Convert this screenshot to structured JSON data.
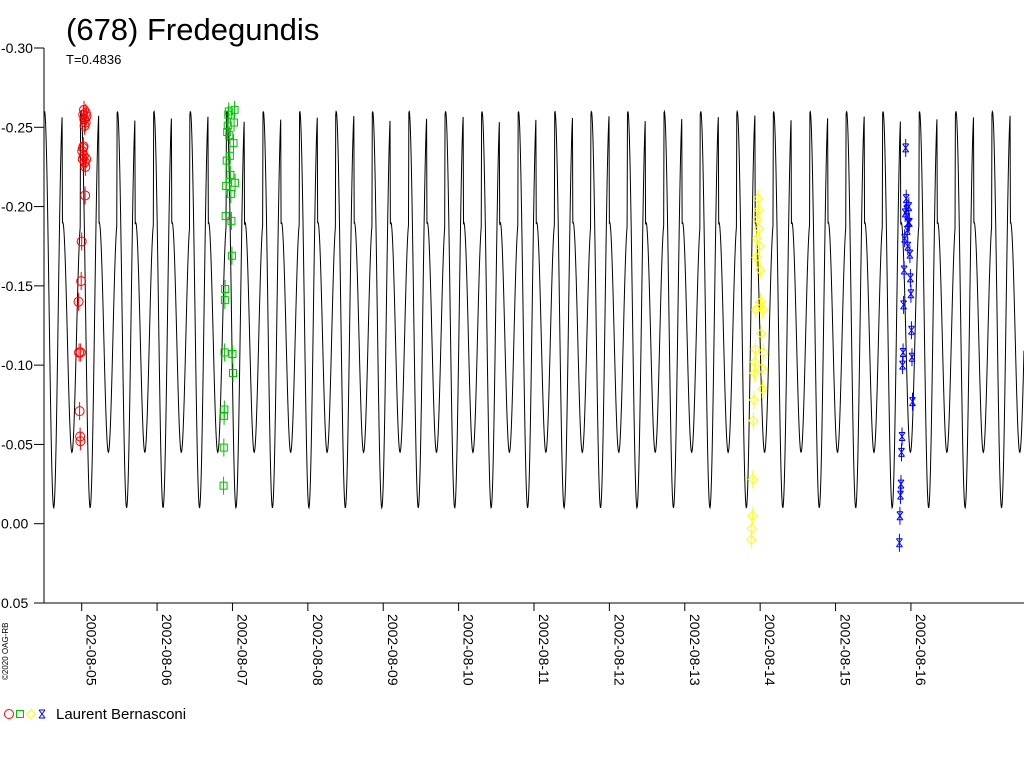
{
  "chart_data": {
    "type": "scatter",
    "title": "(678) Fredegundis",
    "subtitle": "T=0.4836",
    "copyright": "©2020 OAG-RB",
    "xlabel": "",
    "ylabel": "",
    "y_inverted": true,
    "ylim": [
      -0.3,
      0.05
    ],
    "yticks": [
      -0.3,
      -0.25,
      -0.2,
      -0.15,
      -0.1,
      -0.05,
      0.0,
      0.05
    ],
    "ytick_labels": [
      "-0.30",
      "-0.25",
      "-0.20",
      "-0.15",
      "-0.10",
      "-0.05",
      "0.00",
      "0.05"
    ],
    "xlim": [
      "2002-08-04 12:00",
      "2002-08-17 12:00"
    ],
    "xtick_labels": [
      "2002-08-05",
      "2002-08-06",
      "2002-08-07",
      "2002-08-08",
      "2002-08-09",
      "2002-08-10",
      "2002-08-11",
      "2002-08-12",
      "2002-08-13",
      "2002-08-14",
      "2002-08-15",
      "2002-08-16"
    ],
    "model_curve": {
      "color": "#000000",
      "period_days": 0.4836,
      "max_mag": -0.26,
      "secondary_max_mag": -0.19,
      "min_mag": -0.01,
      "secondary_min_mag": -0.045
    },
    "legend": {
      "markers": [
        "circle",
        "square",
        "diamond",
        "star"
      ],
      "colors": [
        "#ff0000",
        "#00c000",
        "#ffff00",
        "#0000ff"
      ],
      "observer": "Laurent Bernasconi"
    },
    "series": [
      {
        "marker": "circle",
        "color": "#ff0000",
        "x": [
          "2002-08-04 23:00",
          "2002-08-04 23:10",
          "2002-08-04 23:20",
          "2002-08-04 23:30",
          "2002-08-04 23:35",
          "2002-08-04 23:40",
          "2002-08-04 23:50",
          "2002-08-05 00:00",
          "2002-08-05 00:10",
          "2002-08-05 00:20",
          "2002-08-05 00:25",
          "2002-08-05 00:30",
          "2002-08-05 00:35",
          "2002-08-05 00:40",
          "2002-08-05 00:45",
          "2002-08-05 00:50",
          "2002-08-05 00:55",
          "2002-08-05 01:00",
          "2002-08-05 01:05",
          "2002-08-05 01:10",
          "2002-08-05 01:15",
          "2002-08-05 01:20",
          "2002-08-05 01:25",
          "2002-08-05 01:30"
        ],
        "y": [
          -0.14,
          -0.108,
          -0.071,
          -0.055,
          -0.052,
          -0.108,
          -0.153,
          -0.178,
          -0.235,
          -0.23,
          -0.237,
          -0.258,
          -0.238,
          -0.232,
          -0.261,
          -0.255,
          -0.251,
          -0.228,
          -0.207,
          -0.225,
          -0.253,
          -0.259,
          -0.23,
          -0.257
        ]
      },
      {
        "marker": "square",
        "color": "#00c000",
        "x": [
          "2002-08-06 21:10",
          "2002-08-06 21:15",
          "2002-08-06 21:20",
          "2002-08-06 21:25",
          "2002-08-06 21:30",
          "2002-08-06 21:35",
          "2002-08-06 21:40",
          "2002-08-06 21:50",
          "2002-08-06 22:00",
          "2002-08-06 22:10",
          "2002-08-06 22:20",
          "2002-08-06 22:30",
          "2002-08-06 22:40",
          "2002-08-06 22:50",
          "2002-08-06 23:00",
          "2002-08-06 23:10",
          "2002-08-06 23:20",
          "2002-08-06 23:30",
          "2002-08-06 23:40",
          "2002-08-06 23:50",
          "2002-08-07 00:00",
          "2002-08-07 00:10",
          "2002-08-07 00:20",
          "2002-08-07 00:30",
          "2002-08-07 00:40",
          "2002-08-07 00:50"
        ],
        "y": [
          -0.024,
          -0.048,
          -0.068,
          -0.072,
          -0.108,
          -0.141,
          -0.148,
          -0.194,
          -0.213,
          -0.229,
          -0.247,
          -0.251,
          -0.258,
          -0.26,
          -0.245,
          -0.232,
          -0.22,
          -0.208,
          -0.191,
          -0.169,
          -0.107,
          -0.095,
          -0.24,
          -0.253,
          -0.261,
          -0.215
        ]
      },
      {
        "marker": "diamond",
        "color": "#ffff00",
        "x": [
          "2002-08-13 21:10",
          "2002-08-13 21:20",
          "2002-08-13 21:30",
          "2002-08-13 21:40",
          "2002-08-13 21:50",
          "2002-08-13 22:00",
          "2002-08-13 22:10",
          "2002-08-13 22:20",
          "2002-08-13 22:30",
          "2002-08-13 22:40",
          "2002-08-13 22:50",
          "2002-08-13 23:00",
          "2002-08-13 23:10",
          "2002-08-13 23:20",
          "2002-08-13 23:30",
          "2002-08-13 23:40",
          "2002-08-13 23:50",
          "2002-08-14 00:00",
          "2002-08-14 00:10",
          "2002-08-14 00:20",
          "2002-08-14 00:30",
          "2002-08-14 00:40",
          "2002-08-14 00:50",
          "2002-08-14 01:00"
        ],
        "y": [
          0.01,
          0.003,
          -0.005,
          -0.028,
          -0.065,
          -0.078,
          -0.095,
          -0.102,
          -0.11,
          -0.135,
          -0.168,
          -0.18,
          -0.192,
          -0.205,
          -0.198,
          -0.186,
          -0.175,
          -0.16,
          -0.14,
          -0.12,
          -0.098,
          -0.085,
          -0.135,
          -0.108
        ]
      },
      {
        "marker": "star",
        "color": "#0000ff",
        "x": [
          "2002-08-15 20:20",
          "2002-08-15 20:30",
          "2002-08-15 20:40",
          "2002-08-15 20:50",
          "2002-08-15 21:00",
          "2002-08-15 21:10",
          "2002-08-15 21:20",
          "2002-08-15 21:30",
          "2002-08-15 21:40",
          "2002-08-15 21:50",
          "2002-08-15 22:00",
          "2002-08-15 22:10",
          "2002-08-15 22:20",
          "2002-08-15 22:30",
          "2002-08-15 22:40",
          "2002-08-15 22:50",
          "2002-08-15 23:00",
          "2002-08-15 23:10",
          "2002-08-15 23:20",
          "2002-08-15 23:30",
          "2002-08-15 23:40",
          "2002-08-15 23:50",
          "2002-08-16 00:00",
          "2002-08-16 00:10",
          "2002-08-16 00:20",
          "2002-08-16 00:30"
        ],
        "y": [
          0.012,
          -0.005,
          -0.018,
          -0.025,
          -0.045,
          -0.055,
          -0.1,
          -0.108,
          -0.138,
          -0.16,
          -0.18,
          -0.196,
          -0.237,
          -0.205,
          -0.198,
          -0.185,
          -0.175,
          -0.19,
          -0.2,
          -0.19,
          -0.17,
          -0.155,
          -0.145,
          -0.122,
          -0.105,
          -0.077
        ]
      }
    ]
  }
}
